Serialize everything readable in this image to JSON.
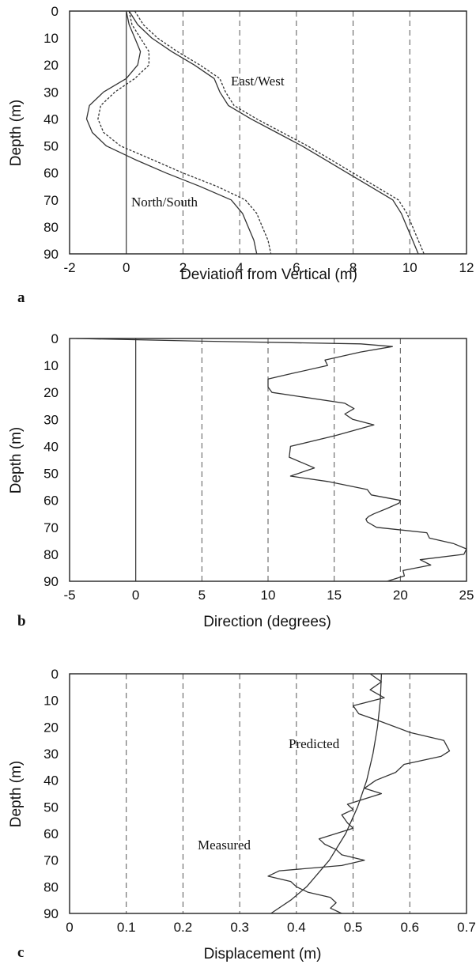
{
  "chart_data": [
    {
      "type": "line",
      "panel_label": "a",
      "xlabel": "Deviation from Vertical (m)",
      "ylabel": "Depth (m)",
      "xlim": [
        -2,
        12
      ],
      "ylim": [
        90,
        0
      ],
      "xticks": [
        -2,
        0,
        2,
        4,
        6,
        8,
        10,
        12
      ],
      "yticks": [
        0,
        10,
        20,
        30,
        40,
        50,
        60,
        70,
        80,
        90
      ],
      "grid": "vertical dashed",
      "annotations": [
        "East/West",
        "North/South"
      ],
      "series": [
        {
          "style": "solid",
          "depth": [
            0,
            5,
            10,
            15,
            20,
            25,
            30,
            35,
            40,
            45,
            50,
            55,
            60,
            65,
            70,
            75,
            80,
            85,
            90
          ],
          "x": [
            0,
            0.1,
            0.3,
            0.5,
            0.4,
            0,
            -0.8,
            -1.3,
            -1.4,
            -1.2,
            -0.7,
            0.3,
            1.4,
            2.6,
            3.7,
            4.1,
            4.3,
            4.5,
            4.6
          ]
        },
        {
          "style": "dashed",
          "depth": [
            0,
            5,
            10,
            15,
            20,
            25,
            30,
            35,
            40,
            45,
            50,
            55,
            60,
            65,
            70,
            75,
            80,
            85,
            90
          ],
          "x": [
            0.1,
            0.2,
            0.5,
            0.8,
            0.8,
            0.3,
            -0.4,
            -0.9,
            -1.0,
            -0.8,
            -0.2,
            0.9,
            2.0,
            3.2,
            4.2,
            4.6,
            4.8,
            5.0,
            5.1
          ]
        },
        {
          "style": "solid",
          "depth": [
            0,
            5,
            10,
            15,
            20,
            25,
            30,
            35,
            40,
            45,
            50,
            55,
            60,
            65,
            70,
            75,
            80,
            85,
            90
          ],
          "x": [
            0.1,
            0.4,
            0.9,
            1.6,
            2.4,
            3.1,
            3.3,
            3.6,
            4.4,
            5.3,
            6.2,
            7.0,
            7.8,
            8.6,
            9.4,
            9.7,
            9.9,
            10.1,
            10.3
          ]
        },
        {
          "style": "dashed",
          "depth": [
            0,
            5,
            10,
            15,
            20,
            25,
            30,
            35,
            40,
            45,
            50,
            55,
            60,
            65,
            70,
            75,
            80,
            85,
            90
          ],
          "x": [
            0.3,
            0.6,
            1.1,
            1.8,
            2.6,
            3.3,
            3.5,
            3.8,
            4.6,
            5.5,
            6.4,
            7.2,
            8.0,
            8.8,
            9.6,
            9.9,
            10.1,
            10.3,
            10.5
          ]
        }
      ]
    },
    {
      "type": "line",
      "panel_label": "b",
      "xlabel": "Direction (degrees)",
      "ylabel": "Depth (m)",
      "xlim": [
        -5,
        25
      ],
      "ylim": [
        90,
        0
      ],
      "xticks": [
        -5,
        0,
        5,
        10,
        15,
        20,
        25
      ],
      "yticks": [
        0,
        10,
        20,
        30,
        40,
        50,
        60,
        70,
        80,
        90
      ],
      "grid": "vertical dashed",
      "series": [
        {
          "style": "solid",
          "depth": [
            0,
            1,
            2,
            3,
            5,
            8,
            10,
            13,
            15,
            18,
            20,
            24,
            26,
            28,
            30,
            32,
            36,
            40,
            44,
            48,
            51,
            53,
            56,
            58,
            60,
            61,
            63,
            65,
            66,
            67,
            68,
            70,
            72,
            74,
            76,
            78,
            80,
            82,
            84,
            86,
            88,
            90
          ],
          "x": [
            -4.5,
            5,
            17,
            19.4,
            17,
            14.3,
            14.5,
            11.8,
            10,
            10,
            10.3,
            15.8,
            16.5,
            15.8,
            16.4,
            18,
            15.1,
            11.7,
            11.6,
            13.5,
            11.7,
            14.5,
            17.5,
            17.8,
            20,
            19.9,
            19,
            18,
            17.6,
            17.4,
            17.5,
            18.2,
            22,
            22.2,
            24,
            25,
            24.8,
            21.5,
            22.3,
            20.2,
            20.3,
            19
          ]
        }
      ]
    },
    {
      "type": "line",
      "panel_label": "c",
      "xlabel": "Displacement (m)",
      "ylabel": "Depth (m)",
      "xlim": [
        0,
        0.7
      ],
      "ylim": [
        90,
        0
      ],
      "xticks": [
        0,
        0.1,
        0.2,
        0.3,
        0.4,
        0.5,
        0.6,
        0.7
      ],
      "yticks": [
        0,
        10,
        20,
        30,
        40,
        50,
        60,
        70,
        80,
        90
      ],
      "grid": "vertical dashed",
      "annotations": [
        "Predicted",
        "Measured"
      ],
      "series": [
        {
          "name": "Predicted",
          "style": "solid",
          "depth": [
            0,
            10,
            20,
            30,
            40,
            50,
            60,
            70,
            80,
            85,
            90
          ],
          "x": [
            0.55,
            0.548,
            0.543,
            0.535,
            0.524,
            0.508,
            0.487,
            0.458,
            0.418,
            0.39,
            0.355
          ]
        },
        {
          "name": "Measured",
          "style": "solid",
          "depth": [
            0,
            3,
            6,
            9,
            12,
            15,
            18,
            22,
            25,
            27,
            29,
            31,
            34,
            37,
            40,
            43,
            45,
            47,
            49,
            51,
            53,
            56,
            58,
            60,
            62,
            64,
            66,
            68,
            70,
            72,
            74,
            76,
            78,
            80,
            82,
            84,
            86,
            88,
            90
          ],
          "x": [
            0.53,
            0.55,
            0.53,
            0.555,
            0.5,
            0.51,
            0.55,
            0.6,
            0.66,
            0.665,
            0.67,
            0.655,
            0.59,
            0.575,
            0.54,
            0.52,
            0.55,
            0.52,
            0.49,
            0.5,
            0.48,
            0.49,
            0.5,
            0.47,
            0.44,
            0.45,
            0.47,
            0.48,
            0.52,
            0.48,
            0.37,
            0.35,
            0.39,
            0.4,
            0.42,
            0.46,
            0.47,
            0.46,
            0.48
          ]
        }
      ]
    }
  ]
}
